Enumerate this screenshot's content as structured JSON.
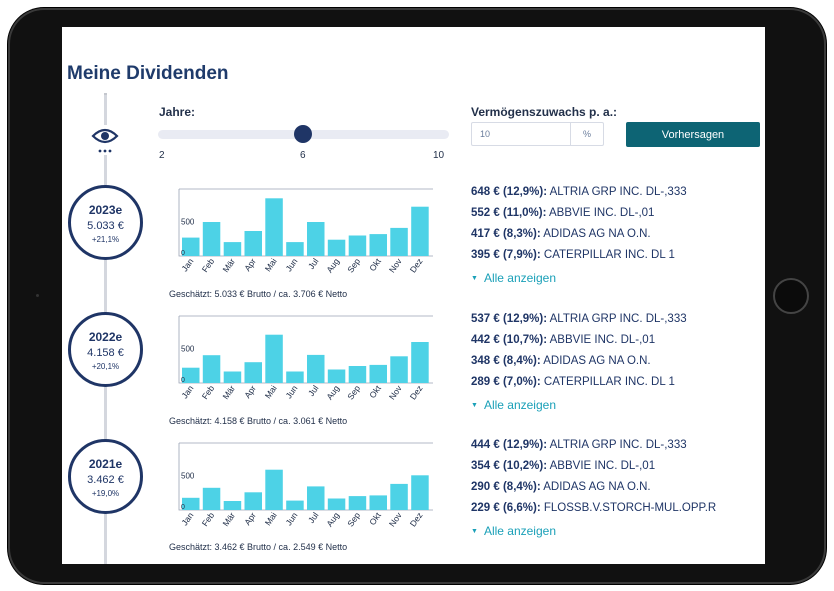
{
  "page": {
    "title": "Meine Dividenden"
  },
  "controls": {
    "years_label": "Jahre:",
    "slider": {
      "min": 2,
      "max": 10,
      "value": 6,
      "min_label": "2",
      "value_label": "6",
      "max_label": "10"
    },
    "growth_label": "Vermögenszuwachs p. a.:",
    "growth_value": "10",
    "growth_unit": "%",
    "predict_label": "Vorhersagen"
  },
  "month_labels": [
    "Jan",
    "Feb",
    "Mär",
    "Apr",
    "Mai",
    "Jun",
    "Jul",
    "Aug",
    "Sep",
    "Okt",
    "Nov",
    "Dez"
  ],
  "show_all_label": "Alle anzeigen",
  "years": [
    {
      "year": "2023e",
      "amount": "5.033 €",
      "change": "+21,1%",
      "y_tick": "500",
      "y_zero": "0",
      "monthly": [
        265,
        490,
        200,
        360,
        830,
        200,
        490,
        235,
        295,
        315,
        405,
        710
      ],
      "summary": "Geschätzt: 5.033 € Brutto / ca. 3.706 € Netto",
      "top": [
        {
          "value": "648 € (12,9%):",
          "name": "ALTRIA GRP INC. DL-,333"
        },
        {
          "value": "552 € (11,0%):",
          "name": "ABBVIE INC. DL-,01"
        },
        {
          "value": "417 € (8,3%):",
          "name": "ADIDAS AG NA O.N."
        },
        {
          "value": "395 € (7,9%):",
          "name": "CATERPILLAR INC. DL 1"
        }
      ]
    },
    {
      "year": "2022e",
      "amount": "4.158 €",
      "change": "+20,1%",
      "y_tick": "500",
      "y_zero": "0",
      "monthly": [
        220,
        400,
        165,
        300,
        695,
        165,
        405,
        195,
        245,
        260,
        385,
        590
      ],
      "summary": "Geschätzt: 4.158 € Brutto / ca. 3.061 € Netto",
      "top": [
        {
          "value": "537 € (12,9%):",
          "name": "ALTRIA GRP INC. DL-,333"
        },
        {
          "value": "442 € (10,7%):",
          "name": "ABBVIE INC. DL-,01"
        },
        {
          "value": "348 € (8,4%):",
          "name": "ADIDAS AG NA O.N."
        },
        {
          "value": "289 € (7,0%):",
          "name": "CATERPILLAR INC. DL 1"
        }
      ]
    },
    {
      "year": "2021e",
      "amount": "3.462 €",
      "change": "+19,0%",
      "y_tick": "500",
      "y_zero": "0",
      "monthly": [
        175,
        320,
        130,
        255,
        580,
        135,
        340,
        165,
        200,
        210,
        375,
        500
      ],
      "summary": "Geschätzt: 3.462 € Brutto / ca. 2.549 € Netto",
      "top": [
        {
          "value": "444 € (12,9%):",
          "name": "ALTRIA GRP INC. DL-,333"
        },
        {
          "value": "354 € (10,2%):",
          "name": "ABBVIE INC. DL-,01"
        },
        {
          "value": "290 € (8,4%):",
          "name": "ADIDAS AG NA O.N."
        },
        {
          "value": "229 € (6,6%):",
          "name": "FLOSSB.V.STORCH-MUL.OPP.R"
        }
      ]
    }
  ],
  "chart_data": [
    {
      "type": "bar",
      "title": "2023e",
      "categories": [
        "Jan",
        "Feb",
        "Mär",
        "Apr",
        "Mai",
        "Jun",
        "Jul",
        "Aug",
        "Sep",
        "Okt",
        "Nov",
        "Dez"
      ],
      "values": [
        265,
        490,
        200,
        360,
        830,
        200,
        490,
        235,
        295,
        315,
        405,
        710
      ],
      "ylim": [
        0,
        950
      ],
      "yticks": [
        0,
        500
      ],
      "color": "#4dd2e6"
    },
    {
      "type": "bar",
      "title": "2022e",
      "categories": [
        "Jan",
        "Feb",
        "Mär",
        "Apr",
        "Mai",
        "Jun",
        "Jul",
        "Aug",
        "Sep",
        "Okt",
        "Nov",
        "Dez"
      ],
      "values": [
        220,
        400,
        165,
        300,
        695,
        165,
        405,
        195,
        245,
        260,
        385,
        590
      ],
      "ylim": [
        0,
        950
      ],
      "yticks": [
        0,
        500
      ],
      "color": "#4dd2e6"
    },
    {
      "type": "bar",
      "title": "2021e",
      "categories": [
        "Jan",
        "Feb",
        "Mär",
        "Apr",
        "Mai",
        "Jun",
        "Jul",
        "Aug",
        "Sep",
        "Okt",
        "Nov",
        "Dez"
      ],
      "values": [
        175,
        320,
        130,
        255,
        580,
        135,
        340,
        165,
        200,
        210,
        375,
        500
      ],
      "ylim": [
        0,
        950
      ],
      "yticks": [
        0,
        500
      ],
      "color": "#4dd2e6"
    }
  ],
  "colors": {
    "navy": "#1f3566",
    "teal_button": "#0d6474",
    "bar": "#4dd2e6",
    "link": "#1aa0b8"
  }
}
